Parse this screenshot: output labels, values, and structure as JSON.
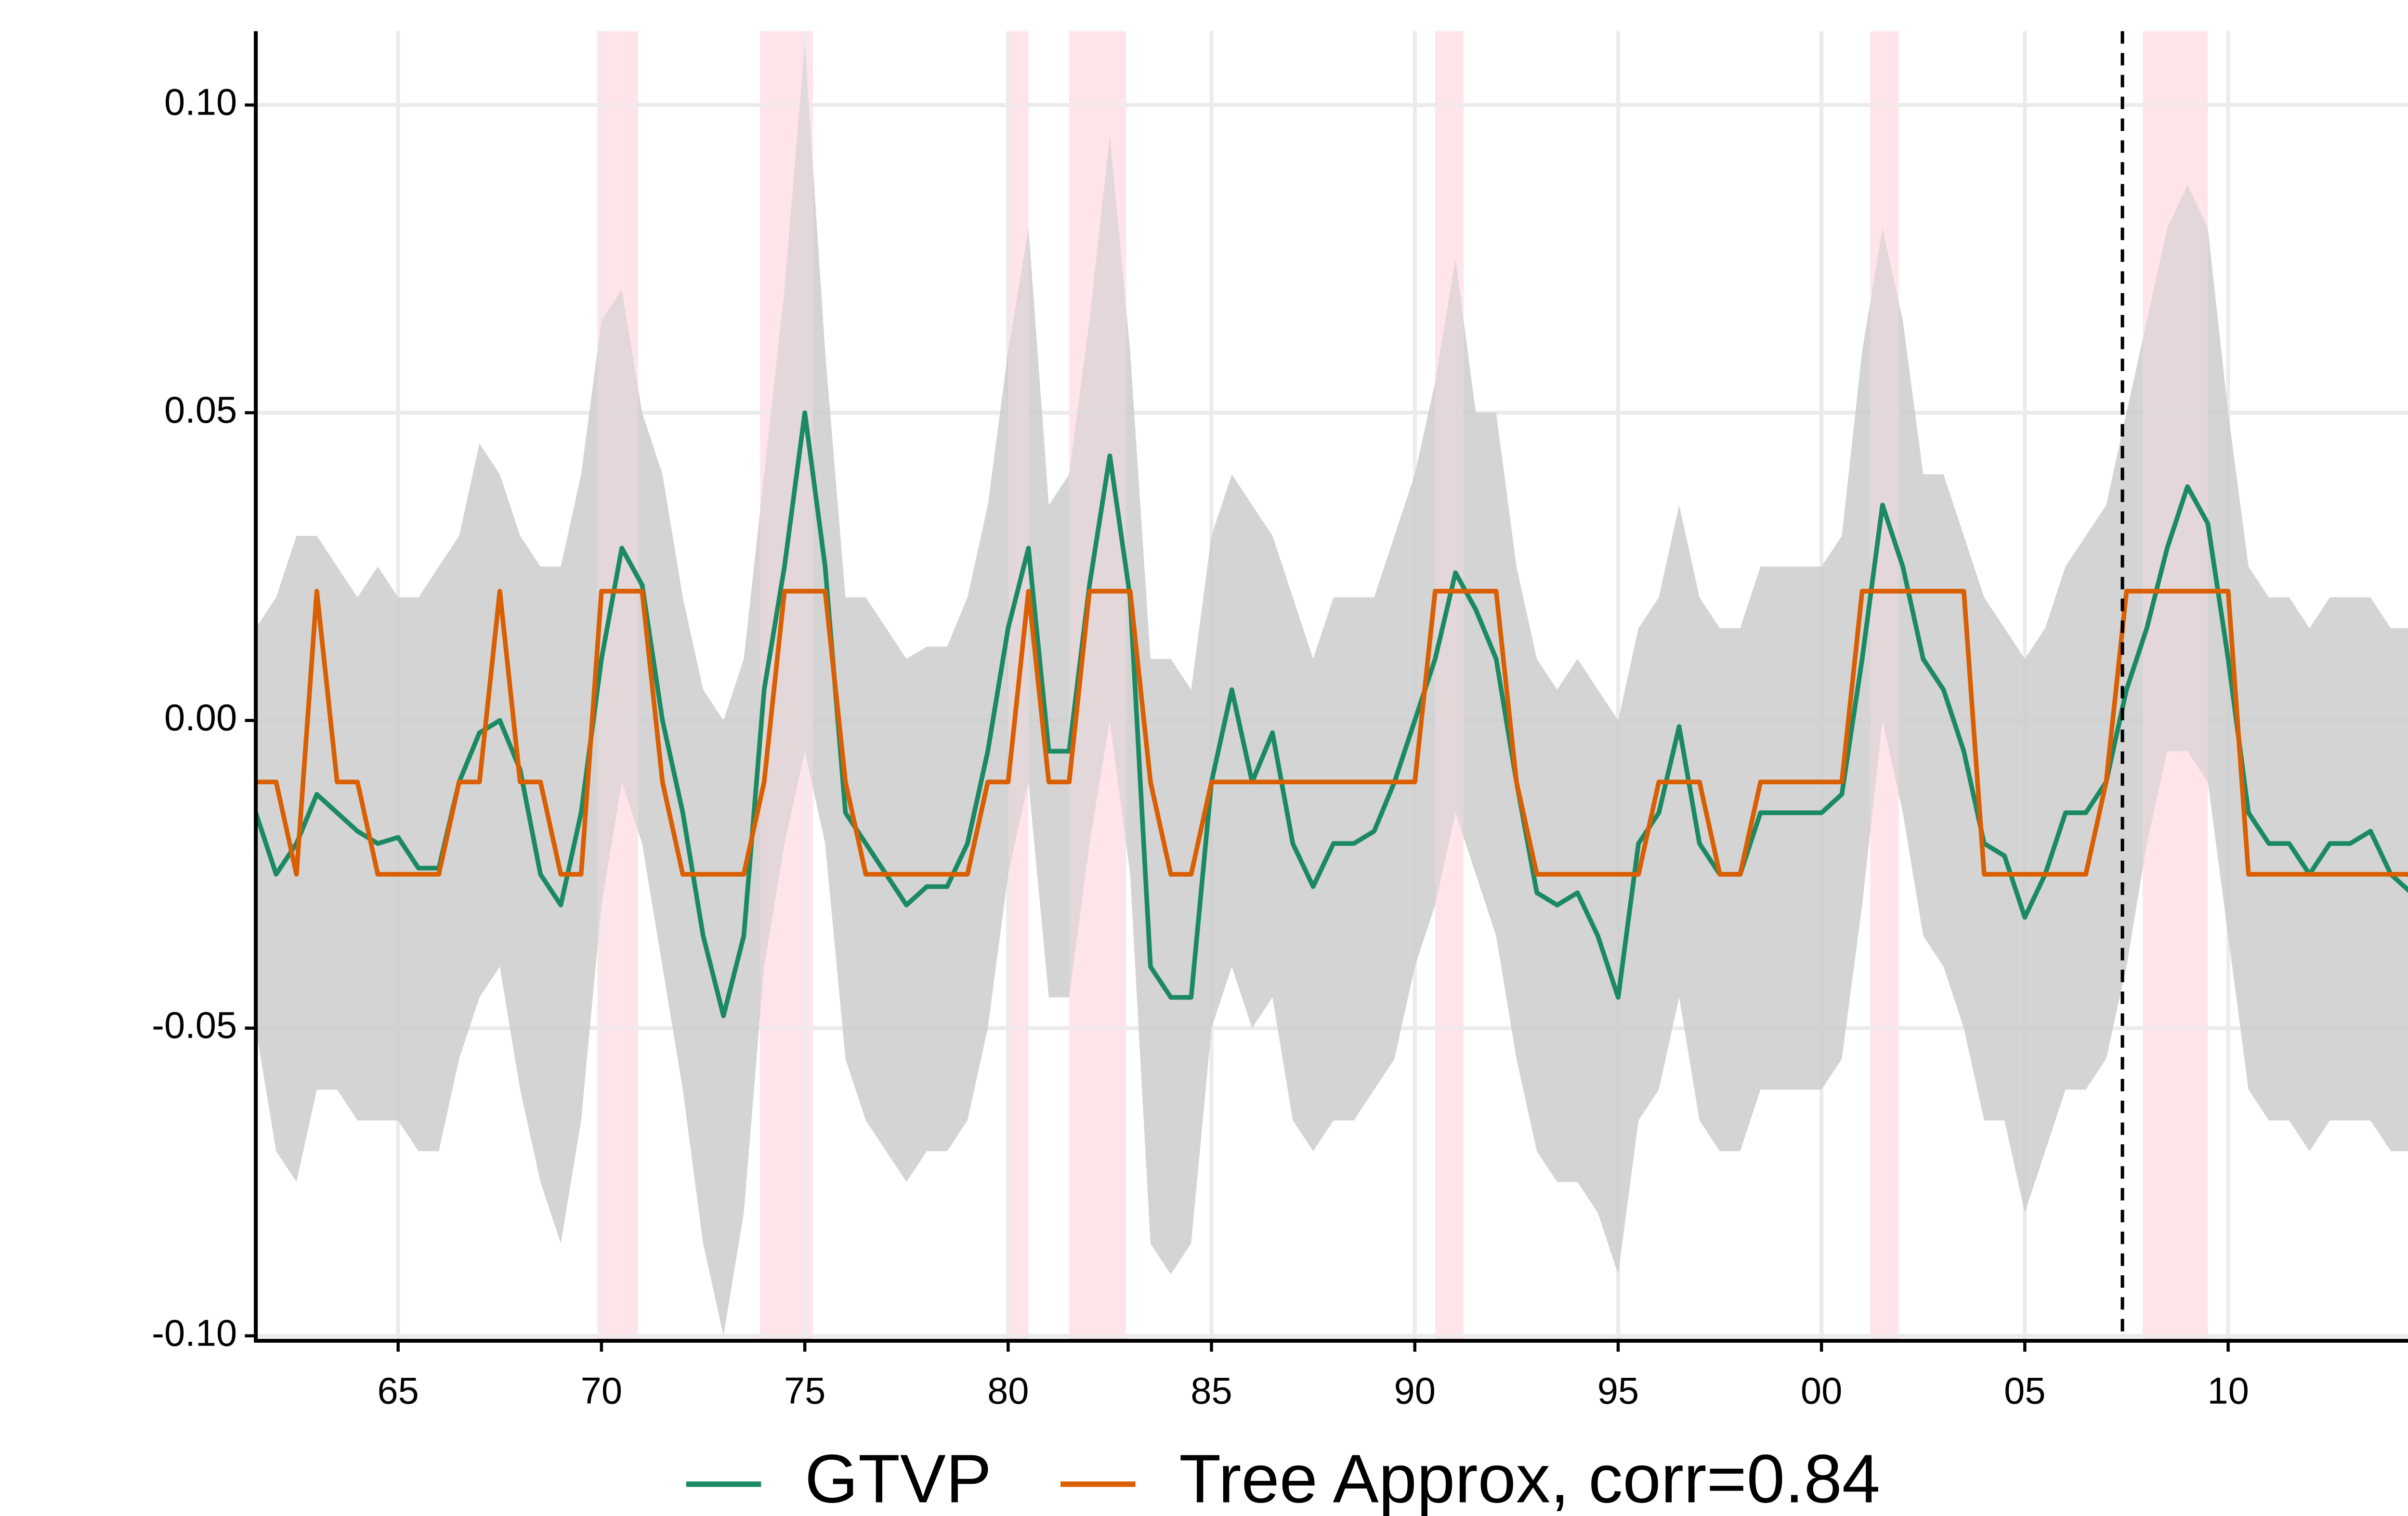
{
  "chart_data": {
    "type": "line",
    "xlim": [
      1961.5,
      2014.5
    ],
    "ylim": [
      -0.1008,
      0.112
    ],
    "xticks": [
      {
        "value": 1965,
        "label": "65"
      },
      {
        "value": 1970,
        "label": "70"
      },
      {
        "value": 1975,
        "label": "75"
      },
      {
        "value": 1980,
        "label": "80"
      },
      {
        "value": 1985,
        "label": "85"
      },
      {
        "value": 1990,
        "label": "90"
      },
      {
        "value": 1995,
        "label": "95"
      },
      {
        "value": 2000,
        "label": "00"
      },
      {
        "value": 2005,
        "label": "05"
      },
      {
        "value": 2010,
        "label": "10"
      }
    ],
    "yticks": [
      {
        "value": 0.1,
        "label": "0.10"
      },
      0.05,
      {
        "value": 0,
        "label": "0.00"
      },
      -0.05,
      {
        "value": -0.1,
        "label": "-0.10"
      }
    ],
    "grid": true,
    "legend": "bottom",
    "recessions": [
      [
        1969.9,
        1970.9
      ],
      [
        1973.9,
        1975.2
      ],
      [
        1980.0,
        1980.5
      ],
      [
        1981.5,
        1982.9
      ],
      [
        1990.5,
        1991.2
      ],
      [
        2001.2,
        2001.9
      ],
      [
        2007.9,
        2009.5
      ]
    ],
    "recession_color": "#ffe4ea",
    "vline": 2007.4,
    "x": [
      1961.5,
      1962,
      1962.5,
      1963,
      1963.5,
      1964,
      1964.5,
      1965,
      1965.5,
      1966,
      1966.5,
      1967,
      1967.5,
      1968,
      1968.5,
      1969,
      1969.5,
      1970,
      1970.5,
      1971,
      1971.5,
      1972,
      1972.5,
      1973,
      1973.5,
      1974,
      1974.5,
      1975,
      1975.5,
      1976,
      1976.5,
      1977,
      1977.5,
      1978,
      1978.5,
      1979,
      1979.5,
      1980,
      1980.5,
      1981,
      1981.5,
      1982,
      1982.5,
      1983,
      1983.5,
      1984,
      1984.5,
      1985,
      1985.5,
      1986,
      1986.5,
      1987,
      1987.5,
      1988,
      1988.5,
      1989,
      1989.5,
      1990,
      1990.5,
      1991,
      1991.5,
      1992,
      1992.5,
      1993,
      1993.5,
      1994,
      1994.5,
      1995,
      1995.5,
      1996,
      1996.5,
      1997,
      1997.5,
      1998,
      1998.5,
      1999,
      1999.5,
      2000,
      2000.5,
      2001,
      2001.5,
      2002,
      2002.5,
      2003,
      2003.5,
      2004,
      2004.5,
      2005,
      2005.5,
      2006,
      2006.5,
      2007,
      2007.5,
      2008,
      2008.5,
      2009,
      2009.5,
      2010,
      2010.5,
      2011,
      2011.5,
      2012,
      2012.5,
      2013,
      2013.5,
      2014,
      2014.5
    ],
    "band": {
      "color": "#cccccc",
      "upper": [
        0.015,
        0.02,
        0.03,
        0.03,
        0.025,
        0.02,
        0.025,
        0.02,
        0.02,
        0.025,
        0.03,
        0.045,
        0.04,
        0.03,
        0.025,
        0.025,
        0.04,
        0.065,
        0.07,
        0.05,
        0.04,
        0.02,
        0.005,
        0.0,
        0.01,
        0.04,
        0.07,
        0.11,
        0.06,
        0.02,
        0.02,
        0.015,
        0.01,
        0.012,
        0.012,
        0.02,
        0.035,
        0.06,
        0.08,
        0.035,
        0.04,
        0.065,
        0.095,
        0.06,
        0.01,
        0.01,
        0.005,
        0.03,
        0.04,
        0.035,
        0.03,
        0.02,
        0.01,
        0.02,
        0.02,
        0.02,
        0.03,
        0.04,
        0.055,
        0.075,
        0.05,
        0.05,
        0.025,
        0.01,
        0.005,
        0.01,
        0.005,
        0.0,
        0.015,
        0.02,
        0.035,
        0.02,
        0.015,
        0.015,
        0.025,
        0.025,
        0.025,
        0.025,
        0.03,
        0.06,
        0.08,
        0.065,
        0.04,
        0.04,
        0.03,
        0.02,
        0.015,
        0.01,
        0.015,
        0.025,
        0.03,
        0.035,
        0.05,
        0.065,
        0.08,
        0.087,
        0.08,
        0.05,
        0.025,
        0.02,
        0.02,
        0.015,
        0.02,
        0.02,
        0.02,
        0.015,
        0.015
      ],
      "lower": [
        -0.05,
        -0.07,
        -0.075,
        -0.06,
        -0.06,
        -0.065,
        -0.065,
        -0.065,
        -0.07,
        -0.07,
        -0.055,
        -0.045,
        -0.04,
        -0.06,
        -0.075,
        -0.085,
        -0.065,
        -0.03,
        -0.01,
        -0.02,
        -0.04,
        -0.06,
        -0.085,
        -0.1,
        -0.08,
        -0.04,
        -0.02,
        -0.005,
        -0.02,
        -0.055,
        -0.065,
        -0.07,
        -0.075,
        -0.07,
        -0.07,
        -0.065,
        -0.05,
        -0.025,
        -0.01,
        -0.045,
        -0.045,
        -0.02,
        0.0,
        -0.025,
        -0.085,
        -0.09,
        -0.085,
        -0.05,
        -0.04,
        -0.05,
        -0.045,
        -0.065,
        -0.07,
        -0.065,
        -0.065,
        -0.06,
        -0.055,
        -0.04,
        -0.03,
        -0.015,
        -0.025,
        -0.035,
        -0.055,
        -0.07,
        -0.075,
        -0.075,
        -0.08,
        -0.09,
        -0.065,
        -0.06,
        -0.045,
        -0.065,
        -0.07,
        -0.07,
        -0.06,
        -0.06,
        -0.06,
        -0.06,
        -0.055,
        -0.03,
        0.0,
        -0.015,
        -0.035,
        -0.04,
        -0.05,
        -0.065,
        -0.065,
        -0.08,
        -0.07,
        -0.06,
        -0.06,
        -0.055,
        -0.04,
        -0.02,
        -0.005,
        -0.005,
        -0.01,
        -0.035,
        -0.06,
        -0.065,
        -0.065,
        -0.07,
        -0.065,
        -0.065,
        -0.065,
        -0.07,
        -0.07
      ]
    },
    "series": [
      {
        "name": "GTVP",
        "color": "#1b8a63",
        "values": [
          -0.015,
          -0.025,
          -0.02,
          -0.012,
          -0.015,
          -0.018,
          -0.02,
          -0.019,
          -0.024,
          -0.024,
          -0.01,
          -0.002,
          0.0,
          -0.008,
          -0.025,
          -0.03,
          -0.015,
          0.01,
          0.028,
          0.022,
          0.0,
          -0.015,
          -0.035,
          -0.048,
          -0.035,
          0.005,
          0.025,
          0.05,
          0.025,
          -0.015,
          -0.02,
          -0.025,
          -0.03,
          -0.027,
          -0.027,
          -0.02,
          -0.005,
          0.015,
          0.028,
          -0.005,
          -0.005,
          0.022,
          0.043,
          0.02,
          -0.04,
          -0.045,
          -0.045,
          -0.01,
          0.005,
          -0.01,
          -0.002,
          -0.02,
          -0.027,
          -0.02,
          -0.02,
          -0.018,
          -0.01,
          0.0,
          0.01,
          0.024,
          0.018,
          0.01,
          -0.01,
          -0.028,
          -0.03,
          -0.028,
          -0.035,
          -0.045,
          -0.02,
          -0.015,
          -0.001,
          -0.02,
          -0.025,
          -0.025,
          -0.015,
          -0.015,
          -0.015,
          -0.015,
          -0.012,
          0.01,
          0.035,
          0.025,
          0.01,
          0.005,
          -0.005,
          -0.02,
          -0.022,
          -0.032,
          -0.025,
          -0.015,
          -0.015,
          -0.01,
          0.005,
          0.015,
          0.028,
          0.038,
          0.032,
          0.01,
          -0.015,
          -0.02,
          -0.02,
          -0.025,
          -0.02,
          -0.02,
          -0.018,
          -0.025,
          -0.028
        ]
      },
      {
        "name": "Tree Approx, corr=0.84",
        "color": "#d95f02",
        "values": [
          -0.01,
          -0.01,
          -0.025,
          0.021,
          -0.01,
          -0.01,
          -0.025,
          -0.025,
          -0.025,
          -0.025,
          -0.01,
          -0.01,
          0.021,
          -0.01,
          -0.01,
          -0.025,
          -0.025,
          0.021,
          0.021,
          0.021,
          -0.01,
          -0.025,
          -0.025,
          -0.025,
          -0.025,
          -0.01,
          0.021,
          0.021,
          0.021,
          -0.01,
          -0.025,
          -0.025,
          -0.025,
          -0.025,
          -0.025,
          -0.025,
          -0.01,
          -0.01,
          0.021,
          -0.01,
          -0.01,
          0.021,
          0.021,
          0.021,
          -0.01,
          -0.025,
          -0.025,
          -0.01,
          -0.01,
          -0.01,
          -0.01,
          -0.01,
          -0.01,
          -0.01,
          -0.01,
          -0.01,
          -0.01,
          -0.01,
          0.021,
          0.021,
          0.021,
          0.021,
          -0.01,
          -0.025,
          -0.025,
          -0.025,
          -0.025,
          -0.025,
          -0.025,
          -0.01,
          -0.01,
          -0.01,
          -0.025,
          -0.025,
          -0.01,
          -0.01,
          -0.01,
          -0.01,
          -0.01,
          0.021,
          0.021,
          0.021,
          0.021,
          0.021,
          0.021,
          -0.025,
          -0.025,
          -0.025,
          -0.025,
          -0.025,
          -0.025,
          -0.01,
          0.021,
          0.021,
          0.021,
          0.021,
          0.021,
          0.021,
          -0.025,
          -0.025,
          -0.025,
          -0.025,
          -0.025,
          -0.025,
          -0.025,
          -0.025,
          -0.025
        ]
      }
    ]
  }
}
